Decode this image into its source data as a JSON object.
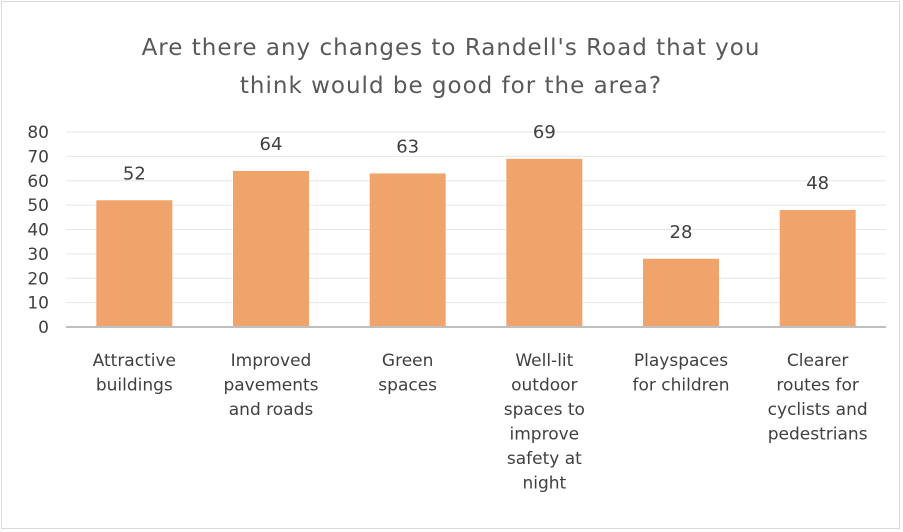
{
  "chart_data": {
    "type": "bar",
    "title_lines": [
      "Are there any changes to Randell's Road that you",
      "think would be good for the area?"
    ],
    "categories": [
      [
        "Attractive",
        "buildings"
      ],
      [
        "Improved",
        "pavements",
        "and roads"
      ],
      [
        "Green",
        "spaces"
      ],
      [
        "Well-lit",
        "outdoor",
        "spaces to",
        "improve",
        "safety at",
        "night"
      ],
      [
        "Playspaces",
        "for children"
      ],
      [
        "Clearer",
        "routes for",
        "cyclists and",
        "pedestrians"
      ]
    ],
    "values": [
      52,
      64,
      63,
      69,
      28,
      48
    ],
    "ylim": [
      0,
      80
    ],
    "yticks": [
      0,
      10,
      20,
      30,
      40,
      50,
      60,
      70,
      80
    ],
    "grid": true,
    "bar_color": "#f0a46c",
    "legend": "none"
  }
}
